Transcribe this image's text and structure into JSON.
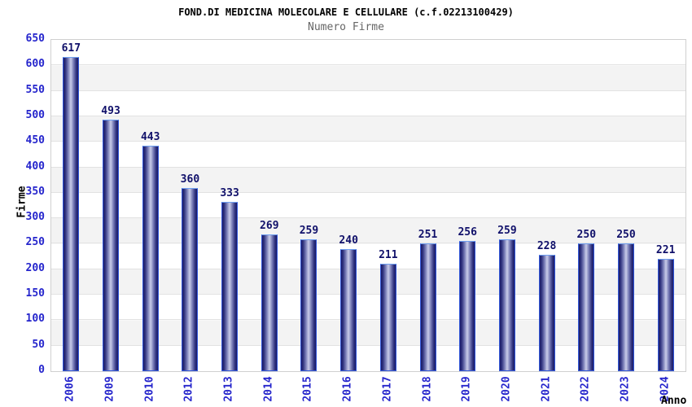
{
  "header": {
    "title": "FOND.DI MEDICINA MOLECOLARE E CELLULARE (c.f.02213100429)",
    "subtitle": "Numero Firme"
  },
  "chart_data": {
    "type": "bar",
    "title": "FOND.DI MEDICINA MOLECOLARE E CELLULARE (c.f.02213100429)",
    "subtitle": "Numero Firme",
    "xlabel": "Anno",
    "ylabel": "Firme",
    "categories": [
      "2006",
      "2009",
      "2010",
      "2012",
      "2013",
      "2014",
      "2015",
      "2016",
      "2017",
      "2018",
      "2019",
      "2020",
      "2021",
      "2022",
      "2023",
      "2024"
    ],
    "values": [
      617,
      493,
      443,
      360,
      333,
      269,
      259,
      240,
      211,
      251,
      256,
      259,
      228,
      250,
      250,
      221
    ],
    "ylim": [
      0,
      650
    ],
    "ytick_step": 50,
    "grid": true,
    "legend": "none",
    "bands": "alternating horizontal white/gray every 50 units",
    "colors": {
      "title_color": "#000000",
      "subtitle_color": "#666666",
      "tick_label": "#2525cc",
      "value_label": "#10106a",
      "bar_border": "#3157da",
      "bar_dark": "#1a1a66",
      "bar_light": "#c9cce9",
      "band_gray": "#f3f3f3",
      "gridline": "#e2e2e2",
      "plot_border": "#d0d0d0"
    }
  }
}
